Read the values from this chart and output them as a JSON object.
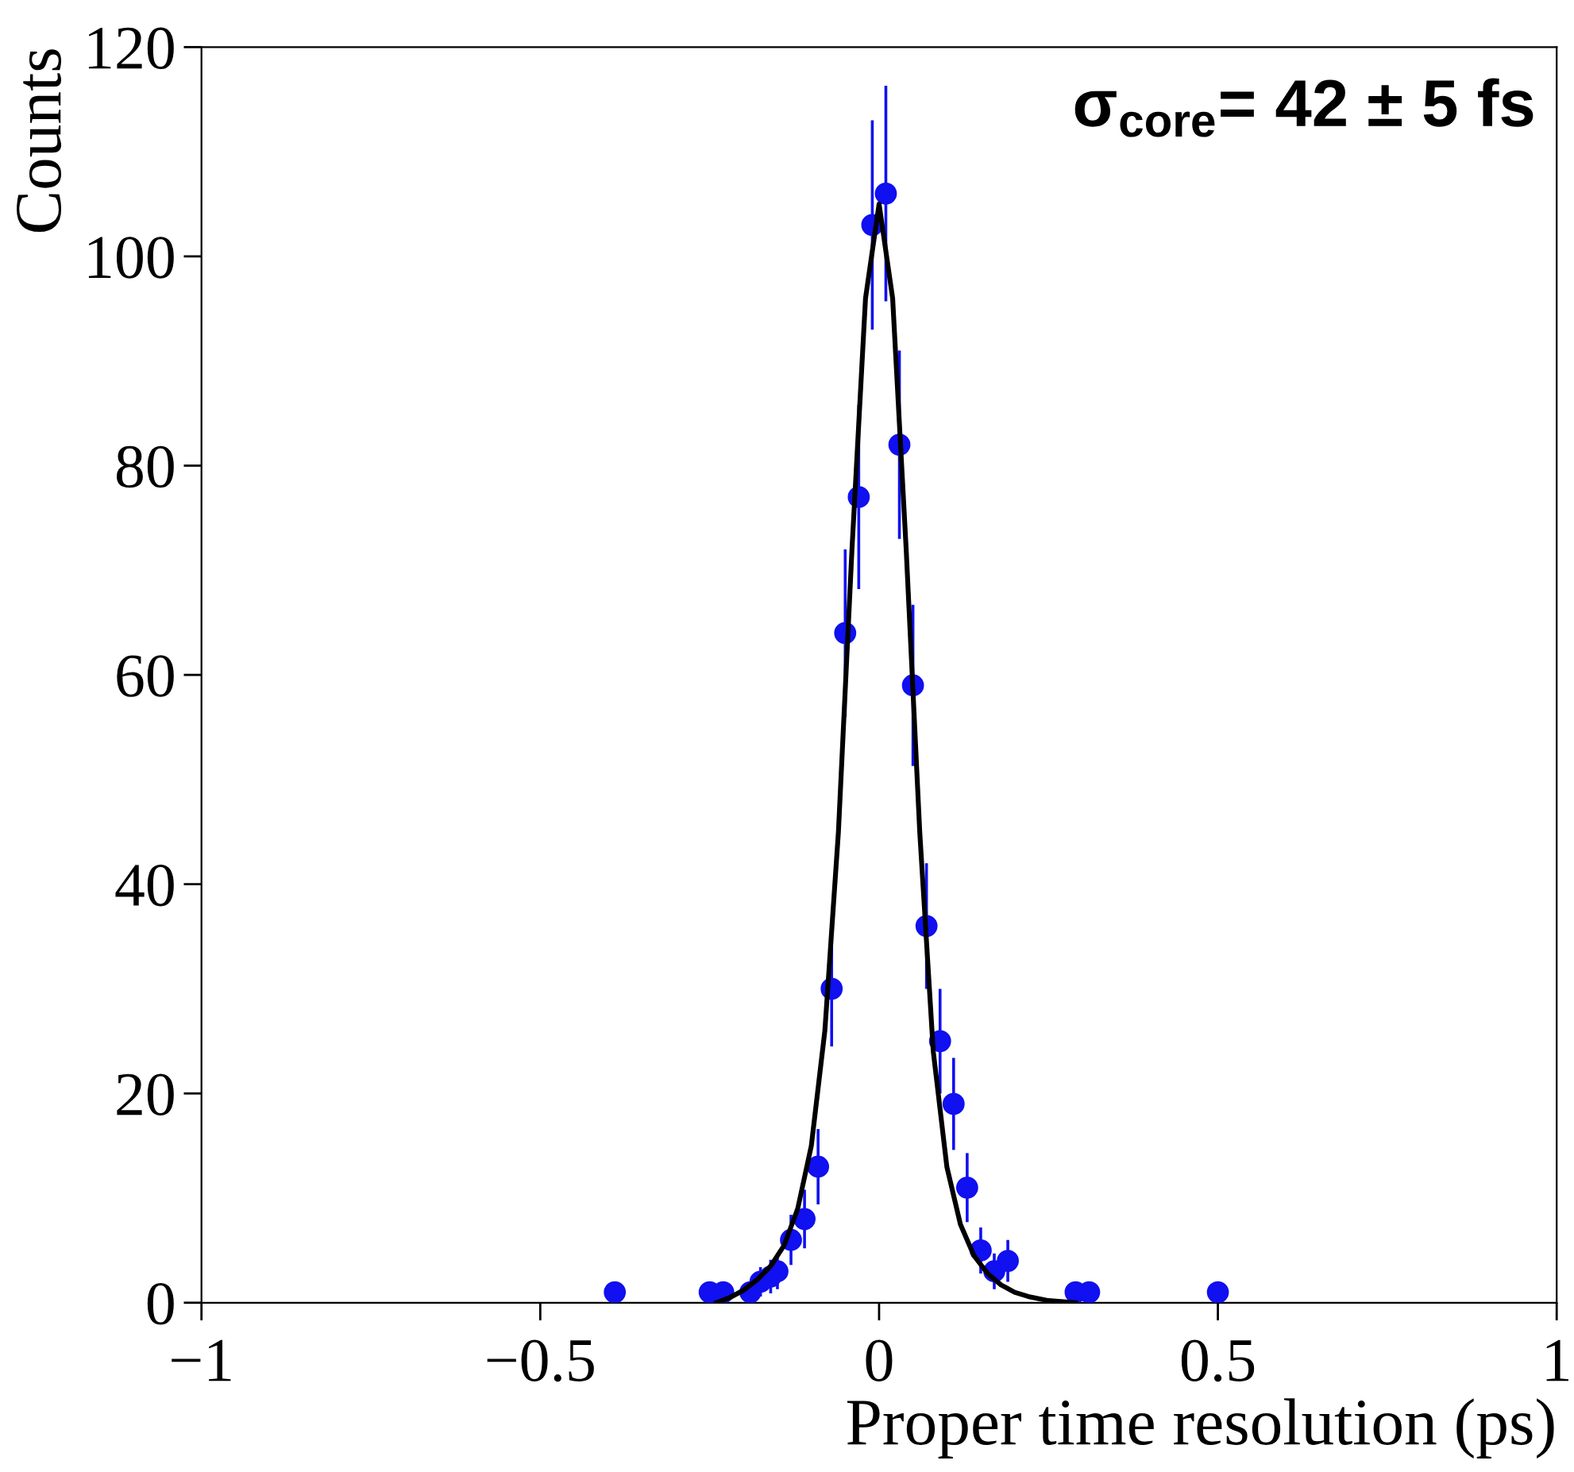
{
  "chart_data": {
    "type": "scatter",
    "xlabel": "Proper time resolution (ps)",
    "ylabel": "Counts",
    "annotations": [
      "σ$_{core}$= 42 ± 5 fs"
    ],
    "xlim": [
      -1,
      1
    ],
    "xticks": [
      -1,
      -0.5,
      0,
      0.5,
      1
    ],
    "ylim": [
      0,
      120
    ],
    "yticks": [
      0,
      20,
      40,
      60,
      80,
      100,
      120
    ],
    "grid": false,
    "legend": false,
    "marker": "circle",
    "series": [
      {
        "color": "#1010f0",
        "x": [
          -0.39,
          -0.25,
          -0.23,
          -0.19,
          -0.175,
          -0.16,
          -0.15,
          -0.13,
          -0.11,
          -0.09,
          -0.07,
          -0.05,
          -0.03,
          -0.01,
          0.01,
          0.03,
          0.05,
          0.07,
          0.09,
          0.11,
          0.13,
          0.15,
          0.17,
          0.19,
          0.29,
          0.31,
          0.5
        ],
        "values": [
          1,
          1,
          1,
          1,
          2,
          2.5,
          3,
          6,
          8,
          13,
          30,
          64,
          77,
          103,
          106,
          82,
          59,
          36,
          25,
          19,
          11,
          5,
          3,
          4,
          1,
          1,
          1
        ],
        "errors": [
          null,
          null,
          null,
          null,
          1.4,
          1.6,
          1.7,
          2.4,
          2.8,
          3.6,
          5.5,
          8,
          8.8,
          10,
          10.3,
          9,
          7.7,
          6,
          5,
          4.4,
          3.3,
          2.2,
          1.7,
          2,
          null,
          null,
          null
        ]
      },
      {
        "type": "line",
        "color": "#000000",
        "marker": "none",
        "line_style": "solid",
        "x": [
          -0.24,
          -0.22,
          -0.2,
          -0.18,
          -0.16,
          -0.14,
          -0.12,
          -0.1,
          -0.08,
          -0.06,
          -0.04,
          -0.02,
          0,
          0.02,
          0.04,
          0.06,
          0.08,
          0.1,
          0.12,
          0.14,
          0.16,
          0.18,
          0.2,
          0.22,
          0.25,
          0.29
        ],
        "values": [
          0,
          0.5,
          1.2,
          2.2,
          3.5,
          5.5,
          9,
          15,
          26,
          45,
          72,
          96,
          105,
          96,
          72,
          45,
          24,
          13,
          7.5,
          4.5,
          2.8,
          1.7,
          1,
          0.6,
          0.2,
          0
        ]
      }
    ]
  }
}
